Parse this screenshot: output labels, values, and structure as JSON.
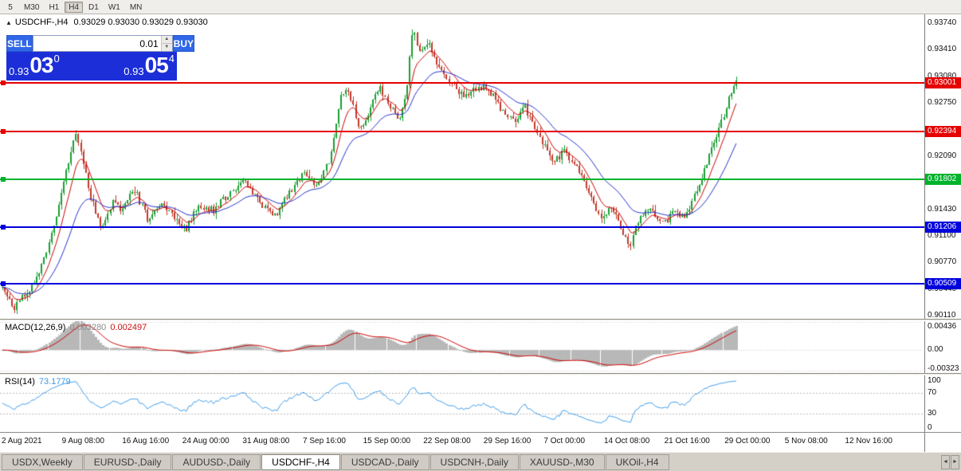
{
  "toolbar": {
    "periods": [
      "5",
      "M30",
      "H1",
      "H4",
      "D1",
      "W1",
      "MN"
    ],
    "active": "H4"
  },
  "header": {
    "collapse_icon": "▲",
    "title": "USDCHF-,H4",
    "ohlc": "0.93029 0.93030 0.93029 0.93030"
  },
  "one_click": {
    "sell": "SELL",
    "buy": "BUY",
    "lot": "0.01",
    "spin_up": "▲",
    "spin_down": "▼",
    "bid": {
      "small": "0.93",
      "big": "03",
      "sup": "0"
    },
    "ask": {
      "small": "0.93",
      "big": "05",
      "sup": "4"
    }
  },
  "price_axis": {
    "ticks": [
      "0.93740",
      "0.93410",
      "0.93080",
      "0.92750",
      "0.92420",
      "0.92090",
      "0.91760",
      "0.91430",
      "0.91100",
      "0.90770",
      "0.90440",
      "0.90110"
    ]
  },
  "levels": [
    {
      "price": "0.93001",
      "value": 0.93001,
      "color": "#e60000"
    },
    {
      "price": "0.92394",
      "value": 0.92394,
      "color": "#e60000"
    },
    {
      "price": "0.91802",
      "value": 0.91802,
      "color": "#00b32c"
    },
    {
      "price": "0.91206",
      "value": 0.91206,
      "color": "#0000dd"
    },
    {
      "price": "0.90509",
      "value": 0.90509,
      "color": "#0000dd"
    }
  ],
  "macd": {
    "label": "MACD(12,26,9)",
    "main_value": "0.003280",
    "signal_value": "0.002497",
    "axis": [
      "0.00436",
      "0.00",
      "-0.00323"
    ]
  },
  "rsi": {
    "label": "RSI(14)",
    "value": "73.1779",
    "axis": [
      "100",
      "70",
      "30",
      "0"
    ]
  },
  "time_axis": [
    "2 Aug 2021",
    "9 Aug 08:00",
    "16 Aug 16:00",
    "24 Aug 00:00",
    "31 Aug 08:00",
    "7 Sep 16:00",
    "15 Sep 00:00",
    "22 Sep 08:00",
    "29 Sep 16:00",
    "7 Oct 00:00",
    "14 Oct 08:00",
    "21 Oct 16:00",
    "29 Oct 00:00",
    "5 Nov 08:00",
    "12 Nov 16:00"
  ],
  "tabs": {
    "items": [
      "USDX,Weekly",
      "EURUSD-,Daily",
      "AUDUSD-,Daily",
      "USDCHF-,H4",
      "USDCAD-,Daily",
      "USDCNH-,Daily",
      "XAUUSD-,M30",
      "UKOil-,H4"
    ],
    "active": "USDCHF-,H4",
    "scroll_left_icon": "◄",
    "scroll_right_icon": "►"
  },
  "chart_data": {
    "type": "candlestick",
    "symbol": "USDCHF-",
    "timeframe": "H4",
    "bars": 300,
    "last_close": 0.9303,
    "price_top": 0.9385,
    "price_bottom": 0.9007,
    "macd_range": [
      -0.0036,
      0.00452
    ],
    "rsi_levels": [
      70,
      30
    ],
    "anchors": [
      [
        0.0,
        0.9046
      ],
      [
        0.01,
        0.903
      ],
      [
        0.016,
        0.902
      ],
      [
        0.03,
        0.9036
      ],
      [
        0.048,
        0.906
      ],
      [
        0.062,
        0.9092
      ],
      [
        0.075,
        0.914
      ],
      [
        0.088,
        0.9195
      ],
      [
        0.1,
        0.9238
      ],
      [
        0.108,
        0.9215
      ],
      [
        0.118,
        0.9165
      ],
      [
        0.135,
        0.912
      ],
      [
        0.15,
        0.9152
      ],
      [
        0.163,
        0.9142
      ],
      [
        0.18,
        0.9168
      ],
      [
        0.198,
        0.913
      ],
      [
        0.215,
        0.915
      ],
      [
        0.232,
        0.9136
      ],
      [
        0.25,
        0.9118
      ],
      [
        0.268,
        0.9148
      ],
      [
        0.288,
        0.9142
      ],
      [
        0.31,
        0.9165
      ],
      [
        0.328,
        0.9178
      ],
      [
        0.35,
        0.9152
      ],
      [
        0.372,
        0.9136
      ],
      [
        0.392,
        0.9164
      ],
      [
        0.41,
        0.9186
      ],
      [
        0.43,
        0.9174
      ],
      [
        0.448,
        0.921
      ],
      [
        0.46,
        0.928
      ],
      [
        0.472,
        0.9292
      ],
      [
        0.487,
        0.9242
      ],
      [
        0.5,
        0.9266
      ],
      [
        0.514,
        0.9296
      ],
      [
        0.528,
        0.9272
      ],
      [
        0.542,
        0.9252
      ],
      [
        0.552,
        0.93
      ],
      [
        0.56,
        0.9372
      ],
      [
        0.568,
        0.9338
      ],
      [
        0.583,
        0.9346
      ],
      [
        0.598,
        0.9312
      ],
      [
        0.613,
        0.93
      ],
      [
        0.628,
        0.9282
      ],
      [
        0.643,
        0.9294
      ],
      [
        0.66,
        0.9296
      ],
      [
        0.678,
        0.9268
      ],
      [
        0.695,
        0.9252
      ],
      [
        0.712,
        0.927
      ],
      [
        0.728,
        0.9242
      ],
      [
        0.75,
        0.9198
      ],
      [
        0.766,
        0.9216
      ],
      [
        0.782,
        0.9194
      ],
      [
        0.798,
        0.9168
      ],
      [
        0.815,
        0.9132
      ],
      [
        0.832,
        0.9146
      ],
      [
        0.848,
        0.911
      ],
      [
        0.856,
        0.9096
      ],
      [
        0.866,
        0.9128
      ],
      [
        0.882,
        0.9142
      ],
      [
        0.9,
        0.9124
      ],
      [
        0.915,
        0.914
      ],
      [
        0.93,
        0.9134
      ],
      [
        0.945,
        0.9162
      ],
      [
        0.958,
        0.9198
      ],
      [
        0.97,
        0.9225
      ],
      [
        0.982,
        0.9258
      ],
      [
        0.992,
        0.9284
      ],
      [
        1.0,
        0.9303
      ]
    ],
    "colors": {
      "up": "#1a9e33",
      "down": "#c0392b",
      "ma_fast": "#cc0000",
      "ma_slow": "#2230cc",
      "macd_hist": "#b8b8b8",
      "macd_signal": "#cc0000",
      "rsi_line": "#3d9be9"
    }
  }
}
